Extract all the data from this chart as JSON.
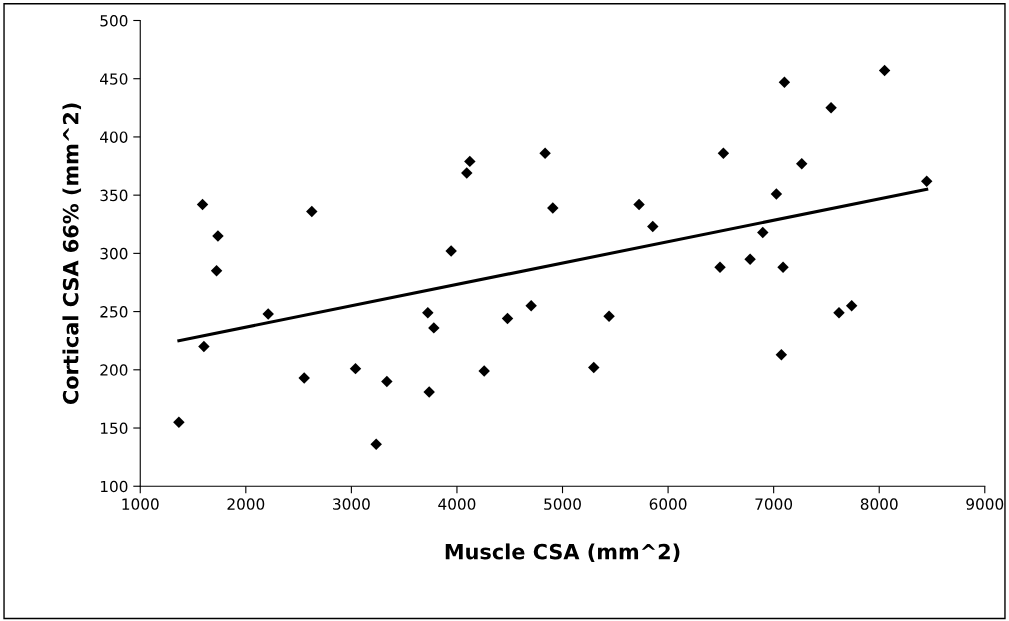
{
  "chart_data": {
    "type": "scatter",
    "xlabel": "Muscle CSA (mm^2)",
    "ylabel": "Cortical CSA 66% (mm^2)",
    "marker": "diamond",
    "grid": false,
    "legend": false,
    "xlim": [
      1000,
      9000
    ],
    "xticks": [
      1000,
      2000,
      3000,
      4000,
      5000,
      6000,
      7000,
      8000,
      9000
    ],
    "ylim": [
      100,
      500
    ],
    "yticks": [
      100,
      150,
      200,
      250,
      300,
      350,
      400,
      450,
      500
    ],
    "series": [
      {
        "color": "#000000",
        "x": [
          1366,
          1590,
          1736,
          1723,
          2212,
          1603,
          2553,
          2625,
          3039,
          3336,
          3235,
          3737,
          3724,
          3781,
          3945,
          4093,
          4122,
          4258,
          4479,
          4703,
          4835,
          4908,
          5296,
          5441,
          5725,
          5855,
          6492,
          6524,
          6777,
          6897,
          7026,
          7089,
          7073,
          7102,
          7266,
          7544,
          7619,
          7739,
          8051,
          8450
        ],
        "values": [
          155,
          342,
          315,
          285,
          248,
          220,
          193,
          336,
          201,
          190,
          136,
          181,
          249,
          236,
          302,
          369,
          379,
          199,
          244,
          255,
          386,
          339,
          202,
          246,
          342,
          323,
          288,
          386,
          295,
          318,
          351,
          288,
          213,
          447,
          377,
          425,
          249,
          255,
          457,
          362
        ]
      },
      {
        "type": "line",
        "color": "#000000",
        "marker": "none",
        "line_style": "solid",
        "x": [
          1366,
          8450
        ],
        "values": [
          225,
          355
        ]
      }
    ]
  }
}
